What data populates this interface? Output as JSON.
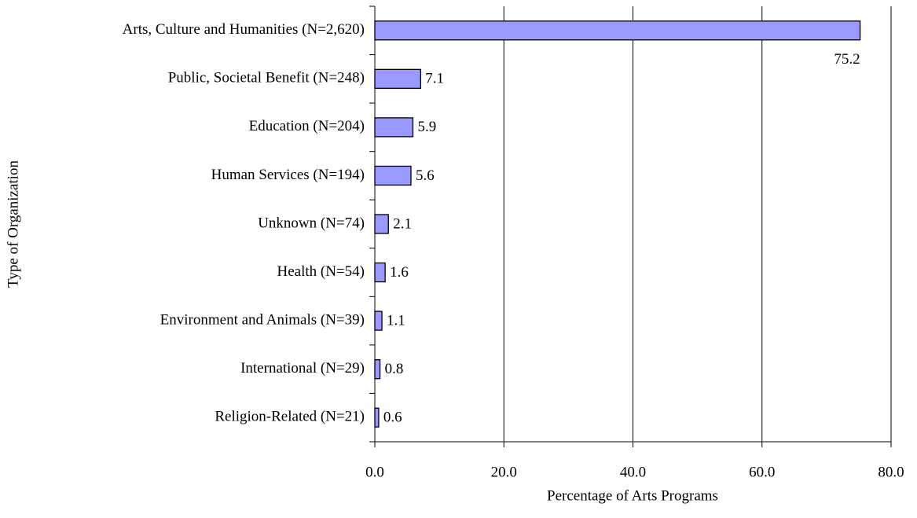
{
  "chart_data": {
    "type": "bar",
    "orientation": "horizontal",
    "xlabel": "Percentage of Arts Programs",
    "ylabel": "Type of Organization",
    "categories": [
      "Arts, Culture and Humanities (N=2,620)",
      "Public, Societal Benefit (N=248)",
      "Education (N=204)",
      "Human Services (N=194)",
      "Unknown (N=74)",
      "Health (N=54)",
      "Environment and Animals (N=39)",
      "International (N=29)",
      "Religion-Related (N=21)"
    ],
    "values": [
      75.2,
      7.1,
      5.9,
      5.6,
      2.1,
      1.6,
      1.1,
      0.8,
      0.6
    ],
    "color": "#9999ff",
    "xlim": [
      0,
      80
    ],
    "xticks": [
      {
        "value": 0,
        "label": "0.0"
      },
      {
        "value": 20,
        "label": "20.0"
      },
      {
        "value": 40,
        "label": "40.0"
      },
      {
        "value": 60,
        "label": "60.0"
      },
      {
        "value": 80,
        "label": "80.0"
      }
    ],
    "grid": true
  }
}
